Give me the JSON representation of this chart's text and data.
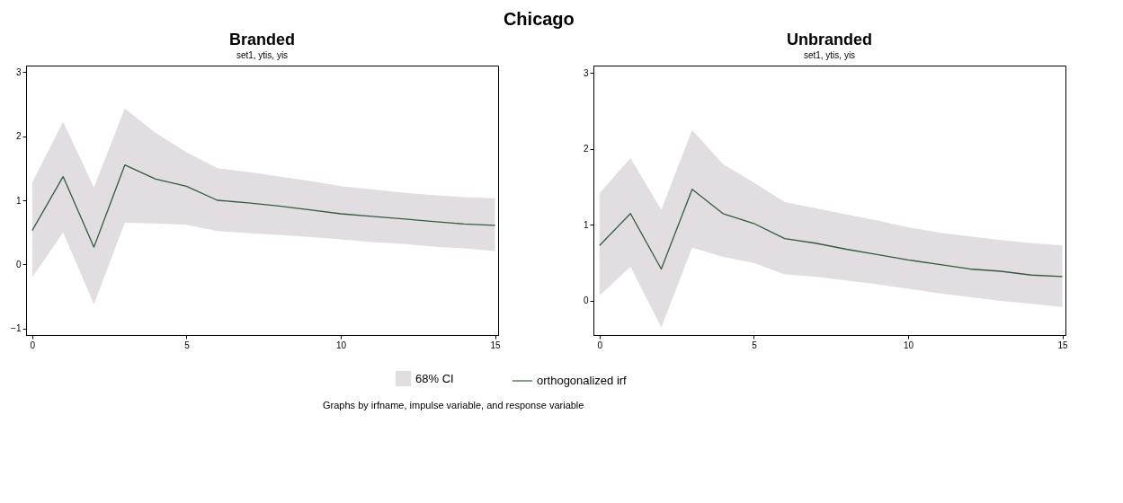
{
  "chart_data": [
    {
      "type": "line",
      "title": "Branded",
      "subtitle": "set1, ytis, yis",
      "annotations": [
        "Chicago"
      ],
      "x": [
        0,
        1,
        2,
        3,
        4,
        5,
        6,
        7,
        8,
        9,
        10,
        11,
        12,
        13,
        14,
        15
      ],
      "xlim": [
        -0.2,
        15.1
      ],
      "xticks": [
        0,
        5,
        10,
        15
      ],
      "ylim": [
        -1.1,
        3.1
      ],
      "yticks": [
        -1,
        0,
        1,
        2,
        3
      ],
      "grid": false,
      "series": [
        {
          "color": "#2e5e3e",
          "values": [
            0.53,
            1.37,
            0.27,
            1.55,
            1.33,
            1.22,
            1.0,
            0.96,
            0.91,
            0.85,
            0.79,
            0.75,
            0.71,
            0.67,
            0.63,
            0.61
          ],
          "lower": [
            -0.2,
            0.5,
            -0.62,
            0.65,
            0.64,
            0.62,
            0.52,
            0.49,
            0.46,
            0.43,
            0.39,
            0.35,
            0.32,
            0.28,
            0.25,
            0.21
          ],
          "upper": [
            1.28,
            2.22,
            1.2,
            2.43,
            2.05,
            1.75,
            1.5,
            1.44,
            1.37,
            1.3,
            1.22,
            1.17,
            1.12,
            1.08,
            1.05,
            1.03
          ]
        }
      ]
    },
    {
      "type": "line",
      "title": "Unbranded",
      "subtitle": "set1, ytis, yis",
      "annotations": [
        "68% CI",
        "Graphs by irfname, impulse variable, and response variable"
      ],
      "x": [
        0,
        1,
        2,
        3,
        4,
        5,
        6,
        7,
        8,
        9,
        10,
        11,
        12,
        13,
        14,
        15
      ],
      "xlim": [
        -0.2,
        15.1
      ],
      "xticks": [
        0,
        5,
        10,
        15
      ],
      "ylim": [
        -0.45,
        3.1
      ],
      "yticks": [
        0,
        1,
        2,
        3
      ],
      "grid": false,
      "legend": "bottom",
      "series": [
        {
          "name": "orthogonalized irf",
          "color": "#2e5e3e",
          "values": [
            0.73,
            1.15,
            0.42,
            1.47,
            1.15,
            1.02,
            0.82,
            0.76,
            0.68,
            0.61,
            0.54,
            0.48,
            0.42,
            0.39,
            0.34,
            0.32
          ],
          "lower": [
            0.07,
            0.45,
            -0.35,
            0.7,
            0.58,
            0.5,
            0.35,
            0.32,
            0.27,
            0.22,
            0.16,
            0.1,
            0.05,
            0.0,
            -0.04,
            -0.08
          ],
          "upper": [
            1.42,
            1.88,
            1.2,
            2.25,
            1.8,
            1.56,
            1.3,
            1.22,
            1.14,
            1.06,
            0.97,
            0.9,
            0.85,
            0.8,
            0.76,
            0.73
          ]
        }
      ]
    }
  ]
}
